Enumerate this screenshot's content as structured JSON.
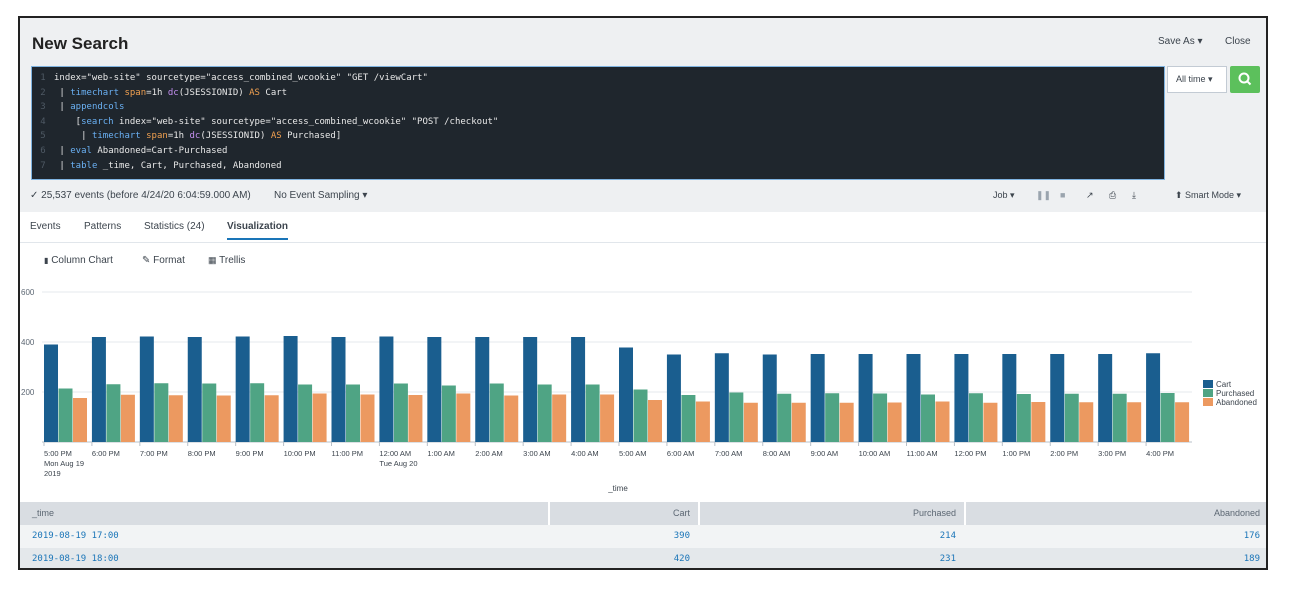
{
  "header": {
    "title": "New Search",
    "save_as": "Save As ▾",
    "close": "Close"
  },
  "query": {
    "lines": [
      {
        "n": "1",
        "parts": [
          {
            "t": "index=\"web-site\" sourcetype=\"access_combined_wcookie\" \"GET /viewCart\"",
            "c": ""
          }
        ]
      },
      {
        "n": "2",
        "parts": [
          {
            "t": " | ",
            "c": ""
          },
          {
            "t": "timechart",
            "c": "kw"
          },
          {
            "t": " ",
            "c": ""
          },
          {
            "t": "span",
            "c": "arg"
          },
          {
            "t": "=1h ",
            "c": ""
          },
          {
            "t": "dc",
            "c": "fn"
          },
          {
            "t": "(JSESSIONID) ",
            "c": ""
          },
          {
            "t": "AS",
            "c": "arg"
          },
          {
            "t": " Cart",
            "c": ""
          }
        ]
      },
      {
        "n": "3",
        "parts": [
          {
            "t": " | ",
            "c": ""
          },
          {
            "t": "appendcols",
            "c": "kw"
          }
        ]
      },
      {
        "n": "4",
        "parts": [
          {
            "t": "    [",
            "c": ""
          },
          {
            "t": "search",
            "c": "kw"
          },
          {
            "t": " index=\"web-site\" sourcetype=\"access_combined_wcookie\" \"POST /checkout\"",
            "c": ""
          }
        ]
      },
      {
        "n": "5",
        "parts": [
          {
            "t": "     | ",
            "c": ""
          },
          {
            "t": "timechart",
            "c": "kw"
          },
          {
            "t": " ",
            "c": ""
          },
          {
            "t": "span",
            "c": "arg"
          },
          {
            "t": "=1h ",
            "c": ""
          },
          {
            "t": "dc",
            "c": "fn"
          },
          {
            "t": "(JSESSIONID) ",
            "c": ""
          },
          {
            "t": "AS",
            "c": "arg"
          },
          {
            "t": " Purchased]",
            "c": ""
          }
        ]
      },
      {
        "n": "6",
        "parts": [
          {
            "t": " | ",
            "c": ""
          },
          {
            "t": "eval",
            "c": "kw"
          },
          {
            "t": " Abandoned=Cart-Purchased",
            "c": ""
          }
        ]
      },
      {
        "n": "7",
        "parts": [
          {
            "t": " | ",
            "c": ""
          },
          {
            "t": "table",
            "c": "kw"
          },
          {
            "t": " _time, Cart, Purchased, Abandoned",
            "c": ""
          }
        ]
      }
    ],
    "time_range": "All time ▾"
  },
  "status": {
    "events": "✓ 25,537 events (before 4/24/20 6:04:59.000 AM)",
    "sampling": "No Event Sampling ▾",
    "job": "Job ▾",
    "mode": "⬆ Smart Mode ▾"
  },
  "tabs": [
    {
      "label": "Events"
    },
    {
      "label": "Patterns"
    },
    {
      "label": "Statistics (24)"
    },
    {
      "label": "Visualization"
    }
  ],
  "viz_tools": {
    "chart": "Column Chart",
    "format": "Format",
    "trellis": "Trellis"
  },
  "chart_data": {
    "type": "bar",
    "xlabel": "_time",
    "ylim": [
      0,
      600
    ],
    "yticks": [
      "600",
      "400",
      "200"
    ],
    "categories": [
      "5:00 PM",
      "6:00 PM",
      "7:00 PM",
      "8:00 PM",
      "9:00 PM",
      "10:00 PM",
      "11:00 PM",
      "12:00 AM",
      "1:00 AM",
      "2:00 AM",
      "3:00 AM",
      "4:00 AM",
      "5:00 AM",
      "6:00 AM",
      "7:00 AM",
      "8:00 AM",
      "9:00 AM",
      "10:00 AM",
      "11:00 AM",
      "12:00 PM",
      "1:00 PM",
      "2:00 PM",
      "3:00 PM",
      "4:00 PM"
    ],
    "sublabels": {
      "0": [
        "Mon Aug 19",
        "2019"
      ],
      "7": [
        "Tue Aug 20"
      ]
    },
    "series": [
      {
        "name": "Cart",
        "color": "#1a5e8f",
        "values": [
          390,
          420,
          422,
          420,
          422,
          424,
          420,
          422,
          420,
          420,
          420,
          420,
          378,
          350,
          355,
          350,
          352,
          352,
          352,
          352,
          352,
          352,
          352,
          355
        ]
      },
      {
        "name": "Purchased",
        "color": "#4fa484",
        "values": [
          214,
          231,
          235,
          234,
          235,
          230,
          230,
          234,
          226,
          234,
          230,
          230,
          210,
          188,
          198,
          193,
          195,
          194,
          190,
          195,
          192,
          193,
          193,
          196
        ]
      },
      {
        "name": "Abandoned",
        "color": "#ec9960",
        "values": [
          176,
          189,
          187,
          186,
          187,
          194,
          190,
          188,
          194,
          186,
          190,
          190,
          168,
          162,
          157,
          157,
          157,
          158,
          162,
          157,
          160,
          159,
          159,
          159
        ]
      }
    ]
  },
  "table": {
    "headers": [
      "_time",
      "Cart",
      "Purchased",
      "Abandoned"
    ],
    "rows": [
      [
        "2019-08-19 17:00",
        "390",
        "214",
        "176"
      ],
      [
        "2019-08-19 18:00",
        "420",
        "231",
        "189"
      ]
    ]
  }
}
